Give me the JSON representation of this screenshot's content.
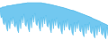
{
  "chart_data": {
    "type": "area",
    "series": [
      {
        "color": "#4db8e8",
        "values": [
          80,
          80,
          82,
          82,
          83,
          83,
          85,
          85,
          85,
          86,
          86,
          87,
          87,
          88,
          88,
          89,
          89,
          89,
          90,
          90,
          91,
          91,
          92,
          92,
          92,
          93,
          93,
          93,
          93,
          93,
          94,
          94,
          94,
          94,
          94,
          94,
          93,
          93,
          93,
          92,
          92,
          91,
          91,
          90,
          90,
          89,
          89,
          88,
          88,
          87,
          86,
          86,
          85,
          84,
          84,
          83,
          82,
          82,
          81,
          80,
          79,
          78,
          78,
          77,
          76,
          75,
          74,
          74,
          73,
          72,
          71,
          70,
          69,
          68,
          67,
          66,
          65,
          64,
          63,
          62,
          60,
          59,
          58,
          57,
          56,
          54,
          53,
          52,
          51,
          50,
          48,
          47,
          46,
          44,
          43,
          42,
          40,
          39,
          38,
          36
        ]
      },
      {
        "color": "#4db8e8",
        "values": [
          72,
          55,
          60,
          42,
          38,
          50,
          30,
          22,
          48,
          28,
          55,
          40,
          58,
          36,
          32,
          45,
          25,
          18,
          50,
          28,
          60,
          42,
          65,
          38,
          34,
          50,
          28,
          20,
          55,
          30,
          62,
          44,
          67,
          40,
          36,
          52,
          30,
          22,
          57,
          32,
          58,
          40,
          62,
          36,
          32,
          48,
          26,
          18,
          52,
          28,
          52,
          36,
          56,
          32,
          28,
          44,
          22,
          15,
          48,
          24,
          48,
          32,
          52,
          28,
          24,
          40,
          18,
          12,
          44,
          20,
          44,
          28,
          48,
          24,
          20,
          36,
          14,
          8,
          40,
          16,
          40,
          24,
          44,
          20,
          16,
          32,
          10,
          5,
          36,
          12,
          36,
          20,
          40,
          16,
          12,
          28,
          8,
          3,
          32,
          10
        ]
      }
    ],
    "color": "#72c8f0",
    "ylim": [
      0,
      100
    ],
    "grid": false,
    "tick_labels": false
  }
}
